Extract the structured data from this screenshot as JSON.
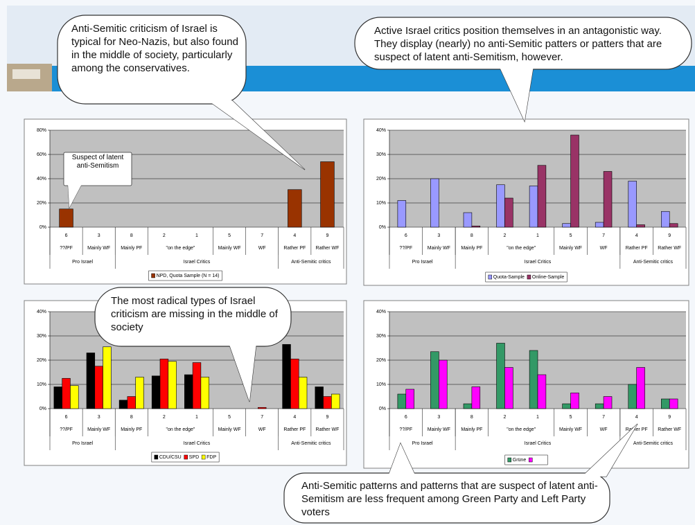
{
  "callouts": [
    "Anti-Semitic criticism of Israel is typical for Neo-Nazis, but also found in the middle of society, particularly among  the conservatives.",
    "Active Israel critics position themselves in an antagonistic way. They display (nearly) no anti-Semitic patters or patters that  are suspect of latent anti-Semitism, however.",
    "The most radical types of Israel criticism are missing in the middle of society",
    "Anti-Semitic patterns and patterns that are suspect of latent anti-Semitism are less frequent among Green Party and Left Party voters"
  ],
  "chart_data": [
    {
      "type": "bar",
      "categories": [
        "6",
        "3",
        "8",
        "2",
        "1",
        "5",
        "7",
        "4",
        "9"
      ],
      "category_types": [
        "??/PF",
        "Mainly WF",
        "Mainly PF",
        "\"on the edge\"",
        null,
        "Mainly WF",
        "WF",
        "Rather PF",
        "Rather WF"
      ],
      "category_groups": [
        "Pro Israel",
        null,
        "Israel Critics",
        null,
        null,
        null,
        null,
        "Anti-Semitic critics",
        null
      ],
      "ylim": [
        0,
        80
      ],
      "yticks": [
        {
          "value": 0,
          "label": "0%"
        },
        {
          "value": 20,
          "label": "20%"
        },
        {
          "value": 40,
          "label": "40%"
        },
        {
          "value": 60,
          "label": "60%"
        },
        {
          "value": 80,
          "label": "80%"
        }
      ],
      "grid": true,
      "annotation": "Suspect of latent anti-Semitism",
      "series": [
        {
          "name": "NPD, Quota Sample (N = 14)",
          "color": "#993300",
          "values": [
            15,
            0,
            0,
            0,
            0,
            0,
            0,
            31,
            54
          ]
        }
      ]
    },
    {
      "type": "bar",
      "categories": [
        "6",
        "3",
        "8",
        "2",
        "1",
        "5",
        "7",
        "4",
        "9"
      ],
      "category_types": [
        "??/PF",
        "Mainly WF",
        "Mainly PF",
        "\"on the edge\"",
        null,
        "Mainly WF",
        "WF",
        "Rather PF",
        "Rather WF"
      ],
      "category_groups": [
        "Pro Israel",
        null,
        "Israel Critics",
        null,
        null,
        null,
        null,
        "Anti-Semitic critics",
        null
      ],
      "ylim": [
        0,
        40
      ],
      "yticks": [
        {
          "value": 0,
          "label": "0%"
        },
        {
          "value": 10,
          "label": "10%"
        },
        {
          "value": 20,
          "label": "20%"
        },
        {
          "value": 30,
          "label": "30%"
        },
        {
          "value": 40,
          "label": "40%"
        }
      ],
      "grid": true,
      "series": [
        {
          "name": "Quota-Sample",
          "color": "#9999ff",
          "values": [
            11,
            20,
            6,
            17.5,
            17,
            1.5,
            2,
            19,
            6.5
          ]
        },
        {
          "name": "Online-Sample",
          "color": "#993366",
          "values": [
            0,
            0,
            0.5,
            12,
            25.5,
            38,
            23,
            1,
            1.5
          ]
        }
      ]
    },
    {
      "type": "bar",
      "categories": [
        "6",
        "3",
        "8",
        "2",
        "1",
        "5",
        "7",
        "4",
        "9"
      ],
      "category_types": [
        "??/PF",
        "Mainly WF",
        "Mainly PF",
        "\"on the edge\"",
        null,
        "Mainly WF",
        "WF",
        "Rather PF",
        "Rather WF"
      ],
      "category_groups": [
        "Pro Israel",
        null,
        "Israel Critics",
        null,
        null,
        null,
        null,
        "Anti-Semitic critics",
        null
      ],
      "ylim": [
        0,
        40
      ],
      "yticks": [
        {
          "value": 0,
          "label": "0%"
        },
        {
          "value": 10,
          "label": "10%"
        },
        {
          "value": 20,
          "label": "20%"
        },
        {
          "value": 30,
          "label": "30%"
        },
        {
          "value": 40,
          "label": "40%"
        }
      ],
      "grid": true,
      "series": [
        {
          "name": "CDU/CSU",
          "color": "#000000",
          "values": [
            9,
            23,
            3.5,
            13.5,
            14,
            0,
            0,
            26.5,
            9
          ]
        },
        {
          "name": "SPD",
          "color": "#ff0000",
          "values": [
            12.5,
            17.5,
            5,
            20.5,
            19,
            0,
            0.5,
            20.5,
            5
          ]
        },
        {
          "name": "FDP",
          "color": "#ffff00",
          "values": [
            9.5,
            25.5,
            13,
            19.5,
            13,
            0,
            0,
            13,
            6
          ]
        }
      ]
    },
    {
      "type": "bar",
      "categories": [
        "6",
        "3",
        "8",
        "2",
        "1",
        "5",
        "7",
        "4",
        "9"
      ],
      "category_types": [
        "??/PF",
        "Mainly WF",
        "Mainly PF",
        "\"on the edge\"",
        null,
        "Mainly WF",
        "WF",
        "Rather PF",
        "Rather WF"
      ],
      "category_groups": [
        "Pro Israel",
        null,
        "Israel Critics",
        null,
        null,
        null,
        null,
        "Anti-Semitic critics",
        null
      ],
      "ylim": [
        0,
        40
      ],
      "yticks": [
        {
          "value": 0,
          "label": "0%"
        },
        {
          "value": 10,
          "label": "10%"
        },
        {
          "value": 20,
          "label": "20%"
        },
        {
          "value": 30,
          "label": "30%"
        },
        {
          "value": 40,
          "label": "40%"
        }
      ],
      "grid": true,
      "series": [
        {
          "name": "Grüne",
          "color": "#339966",
          "values": [
            6,
            23.5,
            2,
            27,
            24,
            2,
            2,
            10,
            4
          ]
        },
        {
          "color": "#ff00ff",
          "values": [
            8,
            20,
            9,
            17,
            14,
            6.5,
            5,
            17,
            4
          ]
        }
      ]
    }
  ]
}
